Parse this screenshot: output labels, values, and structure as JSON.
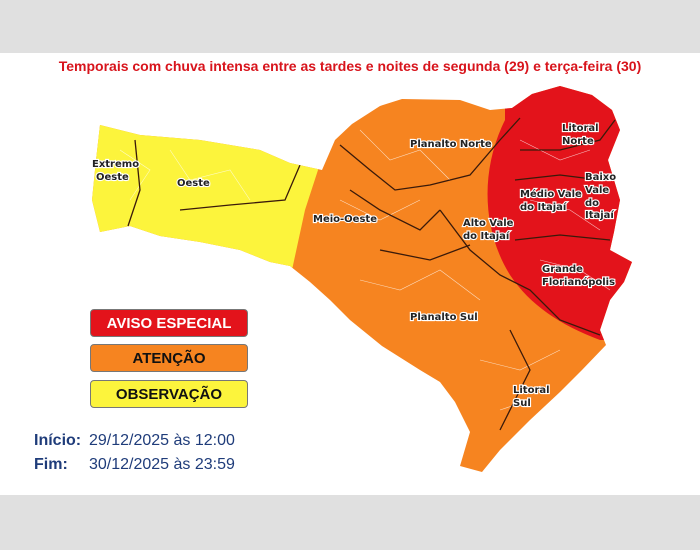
{
  "title": "Temporais com chuva intensa entre as tardes e noites de segunda (29) e terça-feira (30)",
  "colors": {
    "aviso_especial": "#e3131b",
    "atencao": "#f68420",
    "observacao": "#fcf43c",
    "title": "#d8141c",
    "dates": "#1f3c7a"
  },
  "regions": {
    "extremo_oeste": [
      "Extremo",
      "Oeste"
    ],
    "oeste": "Oeste",
    "meio_oeste": "Meio-Oeste",
    "planalto_norte": "Planalto Norte",
    "alto_vale": [
      "Alto Vale",
      "do Itajaí"
    ],
    "medio_vale": [
      "Médio Vale",
      "do Itajaí"
    ],
    "litoral_norte": [
      "Litoral",
      "Norte"
    ],
    "baixo_vale": [
      "Baixo",
      "Vale",
      "do",
      "Itajaí"
    ],
    "grande_florianopolis": [
      "Grande",
      "Florianópolis"
    ],
    "planalto_sul": "Planalto Sul",
    "litoral_sul": [
      "Litoral",
      "Sul"
    ]
  },
  "legend": {
    "aviso_especial": "AVISO ESPECIAL",
    "atencao": "ATENÇÃO",
    "observacao": "OBSERVAÇÃO"
  },
  "period": {
    "inicio_label": "Início:",
    "inicio_value": "29/12/2025 às 12:00",
    "fim_label": "Fim:",
    "fim_value": "30/12/2025 às 23:59"
  }
}
